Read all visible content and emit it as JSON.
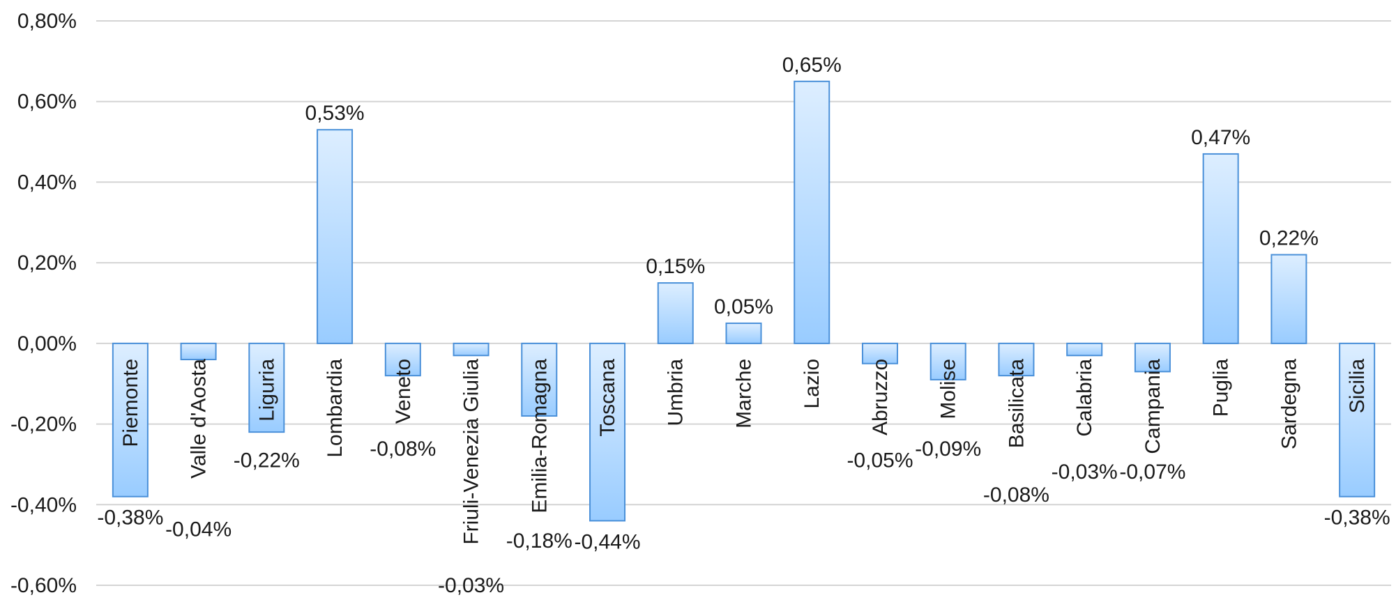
{
  "chart_data": {
    "type": "bar",
    "title": "",
    "xlabel": "",
    "ylabel": "",
    "ylim": [
      -0.6,
      0.8
    ],
    "y_ticks": [
      -0.6,
      -0.4,
      -0.2,
      0,
      0.2,
      0.4,
      0.6,
      0.8
    ],
    "y_tick_labels": [
      "-0,60%",
      "-0,40%",
      "-0,20%",
      "0,00%",
      "0,20%",
      "0,40%",
      "0,60%",
      "0,80%"
    ],
    "grid": true,
    "legend": "none",
    "categories": [
      "Piemonte",
      "Valle d'Aosta",
      "Liguria",
      "Lombardia",
      "Veneto",
      "Friuli-Venezia Giulia",
      "Emilia-Romagna",
      "Toscana",
      "Umbria",
      "Marche",
      "Lazio",
      "Abruzzo",
      "Molise",
      "Basilicata",
      "Calabria",
      "Campania",
      "Puglia",
      "Sardegna",
      "Sicilia"
    ],
    "values": [
      -0.38,
      -0.04,
      -0.22,
      0.53,
      -0.08,
      -0.03,
      -0.18,
      -0.44,
      0.15,
      0.05,
      0.65,
      -0.05,
      -0.09,
      -0.08,
      -0.03,
      -0.07,
      0.47,
      0.22,
      -0.38
    ],
    "value_labels": [
      "-0,38%",
      "-0,04%",
      "-0,22%",
      "0,53%",
      "-0,08%",
      "-0,03%",
      "-0,18%",
      "-0,44%",
      "0,15%",
      "0,05%",
      "0,65%",
      "-0,05%",
      "-0,09%",
      "-0,08%",
      "-0,03%",
      "-0,07%",
      "0,47%",
      "0,22%",
      "-0,38%"
    ],
    "colors": {
      "bar_fill_top": "#ddeeff",
      "bar_fill_bottom": "#99ccff",
      "bar_stroke": "#4a90d9",
      "grid": "#d4d4d4"
    }
  }
}
